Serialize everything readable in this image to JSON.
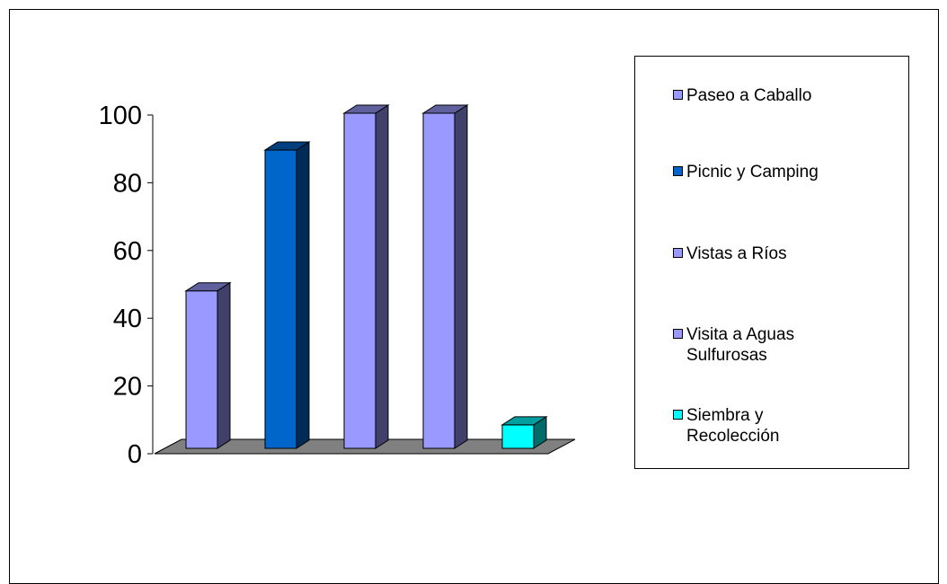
{
  "chart_data": {
    "type": "bar",
    "categories": [
      "Paseo a Caballo",
      "Picnic y Camping",
      "Vistas a Ríos",
      "Visita a Aguas\nSulfurosas",
      "Siembra y\nRecolección"
    ],
    "values": [
      47,
      89,
      100,
      100,
      7
    ],
    "colors": [
      "#9999ff",
      "#0066cc",
      "#9999ff",
      "#9999ff",
      "#00ffff"
    ],
    "ylim": [
      0,
      100
    ],
    "yticks": [
      "0",
      "20",
      "40",
      "60",
      "80",
      "100"
    ],
    "title": "",
    "xlabel": "",
    "ylabel": "",
    "legend_position": "right",
    "grid": false
  }
}
